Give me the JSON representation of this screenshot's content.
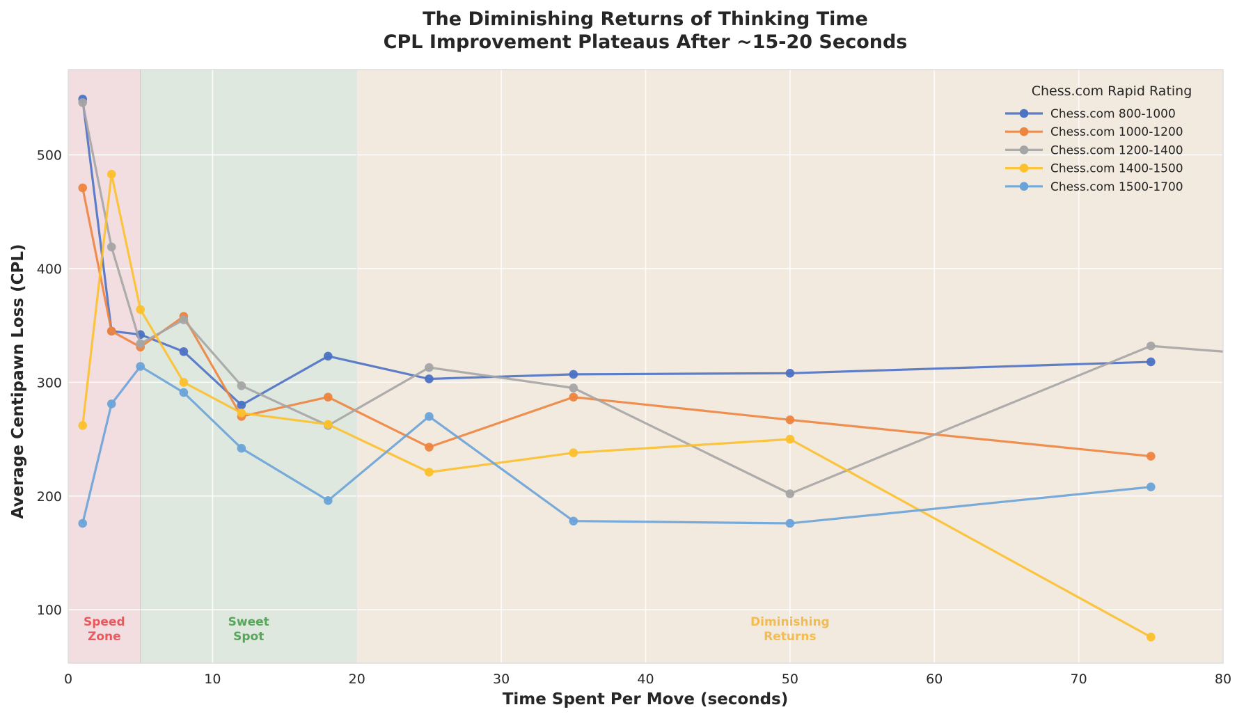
{
  "chart_data": {
    "type": "line",
    "title_line1": "The Diminishing Returns of Thinking Time",
    "title_line2": "CPL Improvement Plateaus After ~15-20 Seconds",
    "xlabel": "Time Spent Per Move (seconds)",
    "ylabel": "Average Centipawn Loss (CPL)",
    "xlim": [
      0,
      80
    ],
    "ylim": [
      53,
      575
    ],
    "xticks": [
      0,
      10,
      20,
      30,
      40,
      50,
      60,
      70,
      80
    ],
    "yticks": [
      100,
      200,
      300,
      400,
      500
    ],
    "grid": true,
    "legend": {
      "title": "Chess.com Rapid Rating",
      "position": "top-right"
    },
    "zones": [
      {
        "label_line1": "Speed",
        "label_line2": "Zone",
        "x0": 0,
        "x1": 5,
        "fill": "#f2dde0",
        "text_color": "#e8585d"
      },
      {
        "label_line1": "Sweet",
        "label_line2": "Spot",
        "x0": 5,
        "x1": 20,
        "fill": "#dfe8df",
        "text_color": "#56a75a"
      },
      {
        "label_line1": "Diminishing",
        "label_line2": "Returns",
        "x0": 20,
        "x1": 80,
        "fill": "#f2e9df",
        "text_color": "#f4bc4e"
      }
    ],
    "series": [
      {
        "name": "Chess.com 800-1000",
        "color": "#4c72c4",
        "x": [
          1,
          3,
          5,
          8,
          12,
          18,
          25,
          35,
          50,
          75
        ],
        "y": [
          549,
          345,
          342,
          327,
          280,
          323,
          303,
          307,
          308,
          318
        ]
      },
      {
        "name": "Chess.com 1000-1200",
        "color": "#ed843f",
        "x": [
          1,
          3,
          5,
          8,
          12,
          18,
          25,
          35,
          50,
          75
        ],
        "y": [
          471,
          345,
          331,
          358,
          270,
          287,
          243,
          287,
          267,
          235
        ]
      },
      {
        "name": "Chess.com 1200-1400",
        "color": "#a5a5a5",
        "x": [
          1,
          3,
          5,
          8,
          12,
          18,
          25,
          35,
          50,
          75,
          90
        ],
        "y": [
          546,
          419,
          334,
          355,
          297,
          262,
          313,
          295,
          202,
          332,
          317
        ]
      },
      {
        "name": "Chess.com 1400-1500",
        "color": "#fcc02c",
        "x": [
          1,
          3,
          5,
          8,
          12,
          18,
          25,
          35,
          50,
          75
        ],
        "y": [
          262,
          483,
          364,
          300,
          273,
          263,
          221,
          238,
          250,
          76
        ]
      },
      {
        "name": "Chess.com 1500-1700",
        "color": "#6aa3d8",
        "x": [
          1,
          3,
          5,
          8,
          12,
          18,
          25,
          35,
          50,
          75
        ],
        "y": [
          176,
          281,
          314,
          291,
          242,
          196,
          270,
          178,
          176,
          208
        ]
      }
    ]
  }
}
